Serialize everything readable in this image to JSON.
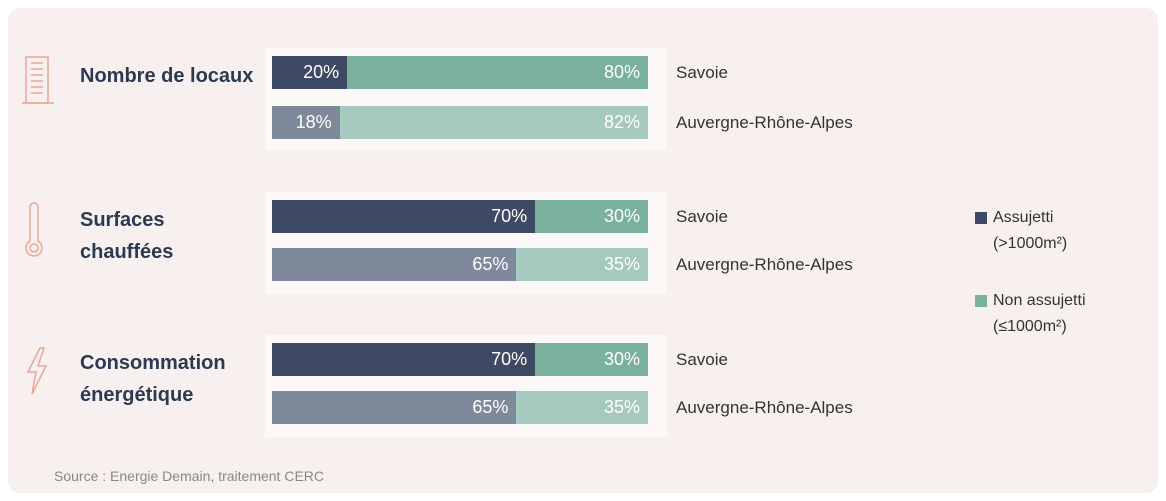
{
  "chart_data": {
    "type": "bar",
    "orientation": "horizontal",
    "stacked": true,
    "xlim": [
      0,
      100
    ],
    "groups": [
      "Nombre de locaux",
      "Surfaces chauffées",
      "Consommation énergétique"
    ],
    "categories": [
      "Savoie",
      "Auvergne-Rhône-Alpes",
      "Savoie",
      "Auvergne-Rhône-Alpes",
      "Savoie",
      "Auvergne-Rhône-Alpes"
    ],
    "series": [
      {
        "name": "Assujetti (>1000m²)",
        "colors": [
          "#3e4a63",
          "#7e8a9b"
        ],
        "values": [
          20,
          18,
          70,
          65,
          70,
          65
        ],
        "value_labels": [
          "20%",
          "18%",
          "70%",
          "65%",
          "70%",
          "65%"
        ]
      },
      {
        "name": "Non assujetti (≤1000m²)",
        "colors": [
          "#7bb09c",
          "#a6c9bf"
        ],
        "values": [
          80,
          82,
          30,
          35,
          30,
          35
        ],
        "value_labels": [
          "80%",
          "82%",
          "30%",
          "35%",
          "30%",
          "35%"
        ]
      }
    ],
    "source": "Source : Energie Demain, traitement CERC"
  }
}
